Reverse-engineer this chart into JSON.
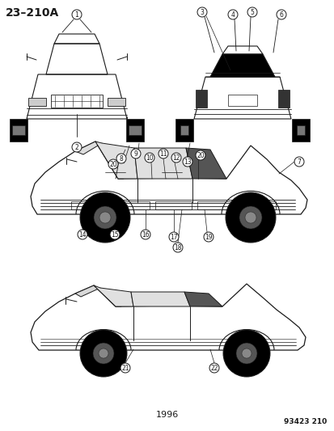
{
  "title": "23–210A",
  "year": "1996",
  "part_number": "93423 210",
  "bg_color": "#ffffff",
  "line_color": "#1a1a1a",
  "title_fontsize": 10,
  "small_fontsize": 7,
  "callout_fontsize": 5.5
}
